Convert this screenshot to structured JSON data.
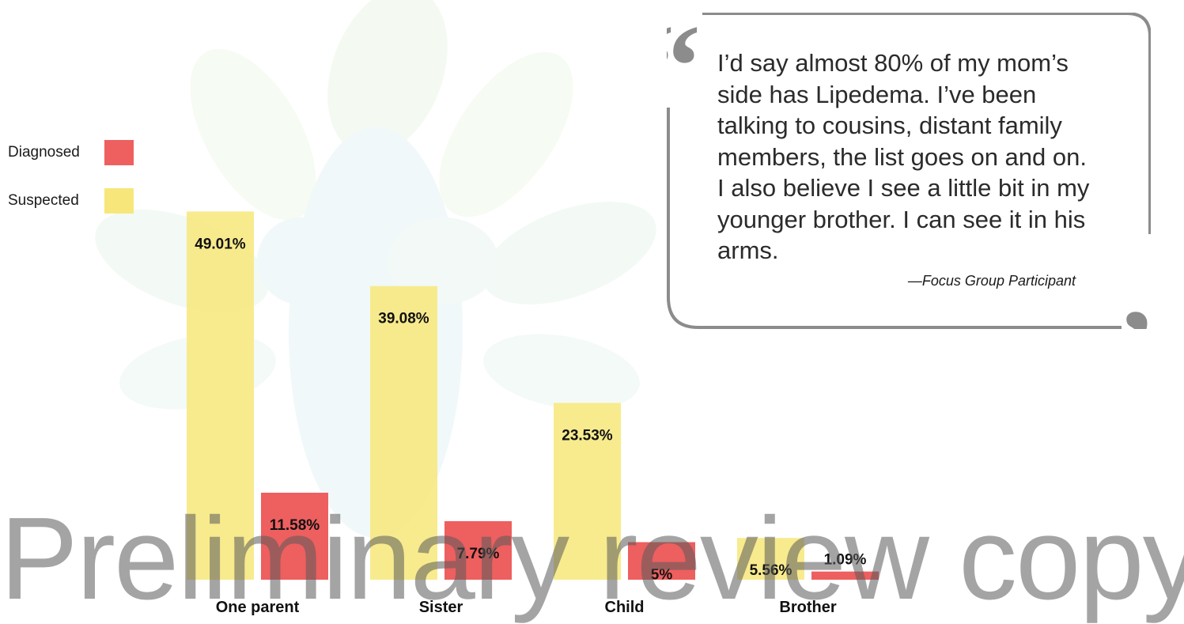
{
  "chart_data": {
    "type": "bar",
    "categories": [
      "One parent",
      "Sister",
      "Child",
      "Brother"
    ],
    "series": [
      {
        "name": "Suspected",
        "values": [
          49.01,
          39.08,
          23.53,
          5.56
        ],
        "labels": [
          "49.01%",
          "39.08%",
          "23.53%",
          "5.56%"
        ],
        "color": "#f7e77a"
      },
      {
        "name": "Diagnosed",
        "values": [
          11.58,
          7.79,
          5,
          1.09
        ],
        "labels": [
          "11.58%",
          "7.79%",
          "5%",
          "1.09%"
        ],
        "color": "#ee5f5f"
      }
    ],
    "ylim": [
      0,
      50
    ],
    "legend_position": "left",
    "grid": false
  },
  "legend": [
    {
      "label": "Diagnosed",
      "color": "#ee5f5f"
    },
    {
      "label": "Suspected",
      "color": "#f7e77a"
    }
  ],
  "quote": {
    "open_mark": "“",
    "close_mark": "”",
    "text": "I’d say almost 80% of my mom’s side has Lipedema. I’ve been talking to cousins, distant family members, the list goes on and on. I also believe I see a little bit in my younger brother. I can see it in his arms.",
    "attribution": "—Focus Group Participant"
  },
  "watermark": "Preliminary review copy",
  "background_art": "leaf-tree-logo"
}
